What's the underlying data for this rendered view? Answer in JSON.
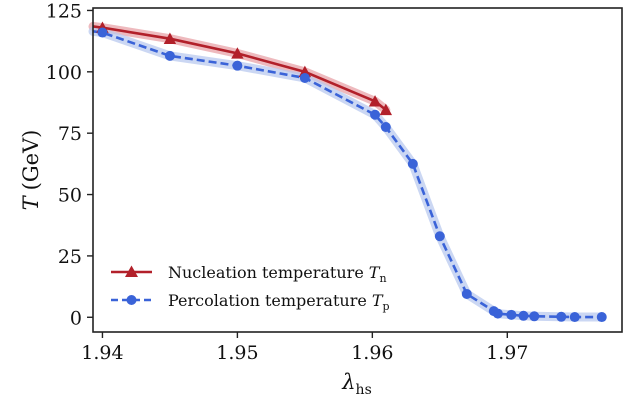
{
  "chart_data": {
    "type": "line",
    "xlim": [
      1.9393,
      1.9785
    ],
    "ylim": [
      -6,
      126
    ],
    "x_ticks": [
      {
        "value": 1.94,
        "label": "1.94"
      },
      {
        "value": 1.95,
        "label": "1.95"
      },
      {
        "value": 1.96,
        "label": "1.96"
      },
      {
        "value": 1.97,
        "label": "1.97"
      }
    ],
    "y_ticks": [
      {
        "value": 0,
        "label": "0"
      },
      {
        "value": 25,
        "label": "25"
      },
      {
        "value": 50,
        "label": "50"
      },
      {
        "value": 75,
        "label": "75"
      },
      {
        "value": 100,
        "label": "100"
      },
      {
        "value": 125,
        "label": "125"
      }
    ],
    "xlabel": {
      "main": "λ",
      "sub": "hs"
    },
    "ylabel": {
      "main": "T",
      "unit": "(GeV)"
    },
    "grid": false,
    "legend_position": "lower-left",
    "series": [
      {
        "name": "Nucleation temperature",
        "name_symbol": "T",
        "name_sub": "n",
        "color": "#b2202a",
        "band_color": "#e8a3a8",
        "marker": "triangle",
        "linestyle": "solid",
        "x": [
          1.9393,
          1.94,
          1.945,
          1.95,
          1.955,
          1.9602,
          1.961
        ],
        "y": [
          118.5,
          118,
          113.5,
          107.5,
          100,
          88,
          84.5
        ]
      },
      {
        "name": "Percolation temperature",
        "name_symbol": "T",
        "name_sub": "p",
        "color": "#3a63d8",
        "band_color": "#b9c9ef",
        "marker": "circle",
        "linestyle": "dashed",
        "x": [
          1.9393,
          1.94,
          1.945,
          1.95,
          1.955,
          1.9602,
          1.961,
          1.963,
          1.965,
          1.967,
          1.969,
          1.9693,
          1.9703,
          1.9712,
          1.972,
          1.974,
          1.975,
          1.977
        ],
        "y": [
          116.5,
          116,
          106.5,
          102.5,
          97.5,
          82.5,
          77.5,
          62.5,
          33,
          9.5,
          2.5,
          1.5,
          1,
          0.6,
          0.4,
          0.2,
          0.1,
          0.1
        ]
      }
    ]
  }
}
